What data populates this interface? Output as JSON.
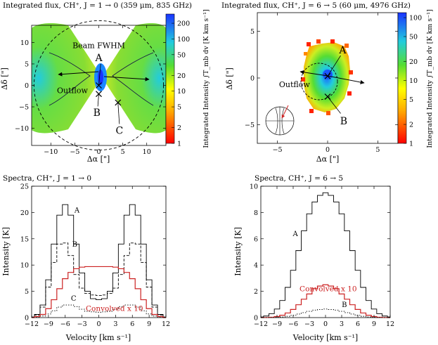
{
  "chart_data": [
    {
      "id": "map1",
      "type": "heatmap",
      "title": "Integrated flux, CH⁺, J = 1 → 0 (359 μm, 835 GHz)",
      "xlabel": "Δα [\"]",
      "ylabel": "Δδ [\"]",
      "xlim": [
        -14,
        14
      ],
      "ylim": [
        -14,
        14
      ],
      "xticks": [
        -10,
        -5,
        0,
        5,
        10
      ],
      "yticks": [
        -10,
        -5,
        0,
        5,
        10
      ],
      "colorbar": {
        "label": "Integrated Intensity ∫T_mb dv [K km s⁻¹]",
        "scale": "log",
        "range": [
          1,
          300
        ],
        "ticks": [
          1,
          2,
          5,
          10,
          20,
          50,
          100,
          200
        ]
      },
      "annotations": [
        {
          "text": "Beam FWHM",
          "x": 0,
          "y": 9.5
        },
        {
          "text": "A",
          "x": 0,
          "y": 6.5
        },
        {
          "text": "B",
          "x": -0.4,
          "y": -6.3
        },
        {
          "text": "C",
          "x": 4.3,
          "y": -10.5
        },
        {
          "text": "Outflow",
          "x": -5.5,
          "y": -1.0
        }
      ],
      "points": [
        {
          "label": "A",
          "x": 0,
          "y": 0
        },
        {
          "label": "B",
          "x": 0,
          "y": -2
        },
        {
          "label": "C",
          "x": 4,
          "y": -4
        }
      ],
      "beam_fwhm_radius": 13.5
    },
    {
      "id": "map2",
      "type": "heatmap",
      "title": "Integrated flux, CH⁺, J = 6 → 5 (60 μm, 4976 GHz)",
      "xlabel": "Δα [\"]",
      "ylabel": "Δδ [\"]",
      "xlim": [
        -7,
        7
      ],
      "ylim": [
        -7,
        7
      ],
      "xticks": [
        -5,
        0,
        5
      ],
      "yticks": [
        -5,
        0,
        5
      ],
      "colorbar": {
        "label": "Integrated Intensity ∫T_mb dv [K km s⁻¹]",
        "scale": "log",
        "range": [
          1,
          120
        ],
        "ticks": [
          1,
          2,
          5,
          10,
          20,
          50,
          100
        ]
      },
      "annotations": [
        {
          "text": "A",
          "x": 1.5,
          "y": 3.0
        },
        {
          "text": "B",
          "x": 1.6,
          "y": -4.6
        },
        {
          "text": "Outflow",
          "x": -3.3,
          "y": -0.6
        }
      ],
      "points": [
        {
          "label": "A",
          "x": 0,
          "y": 0.2
        },
        {
          "label": "B",
          "x": 0,
          "y": -2
        }
      ]
    },
    {
      "id": "spec1",
      "type": "line",
      "title": "Spectra, CH⁺, J = 1 → 0",
      "xlabel": "Velocity [km s⁻¹]",
      "ylabel": "Intensity [K]",
      "xlim": [
        -12,
        12
      ],
      "ylim": [
        0,
        25
      ],
      "xticks": [
        -12,
        -9,
        -6,
        -3,
        0,
        3,
        6,
        9,
        12
      ],
      "yticks": [
        0,
        5,
        10,
        15,
        20,
        25
      ],
      "x": [
        -12,
        -11,
        -10,
        -9,
        -8,
        -7,
        -6,
        -5,
        -4,
        -3,
        -2,
        -1,
        0,
        1,
        2,
        3,
        4,
        5,
        6,
        7,
        8,
        9,
        10,
        11,
        12
      ],
      "series": [
        {
          "name": "A",
          "style": "solid",
          "color": "#000000",
          "values": [
            0.1,
            0.6,
            2.4,
            7.2,
            14,
            19.5,
            21.5,
            19.5,
            14,
            8.5,
            5,
            3.6,
            3.4,
            3.6,
            5,
            8.5,
            14,
            19.5,
            21.5,
            19.5,
            14,
            7.2,
            2.4,
            0.6,
            0.1
          ]
        },
        {
          "name": "B",
          "style": "dashed",
          "color": "#000000",
          "values": [
            0.1,
            0.5,
            2,
            5.8,
            10.5,
            14,
            14.2,
            11.8,
            8.2,
            5.6,
            4.6,
            4.3,
            4.2,
            4.3,
            4.6,
            5.6,
            8.2,
            11.8,
            14.2,
            14,
            10.5,
            5.8,
            2,
            0.5,
            0.1
          ]
        },
        {
          "name": "C",
          "style": "dotted",
          "color": "#000000",
          "values": [
            0,
            0.1,
            0.3,
            0.7,
            1.3,
            2,
            2.4,
            2.4,
            2.1,
            1.6,
            1.2,
            1.1,
            1.0,
            1.1,
            1.2,
            1.6,
            2.1,
            2.4,
            2.4,
            2,
            1.3,
            0.7,
            0.3,
            0.1,
            0
          ]
        },
        {
          "name": "Convolved x 10",
          "style": "solid",
          "color": "#cc2222",
          "values": [
            0,
            0.2,
            0.6,
            1.7,
            3.4,
            5.5,
            7.4,
            8.6,
            9.3,
            9.6,
            9.7,
            9.7,
            9.7,
            9.7,
            9.7,
            9.6,
            9.3,
            8.6,
            7.4,
            5.5,
            3.4,
            1.7,
            0.6,
            0.2,
            0
          ]
        }
      ],
      "labels": [
        {
          "text": "A",
          "x": -3.9,
          "y": 20
        },
        {
          "text": "B",
          "x": -4.3,
          "y": 13.5
        },
        {
          "text": "C",
          "x": -4.5,
          "y": 3.2
        },
        {
          "text": "Convolved x 10",
          "x": 2.8,
          "y": 1.3
        }
      ]
    },
    {
      "id": "spec2",
      "type": "line",
      "title": "Spectra, CH⁺, J = 6 → 5",
      "xlabel": "Velocity [km s⁻¹]",
      "ylabel": "Intensity [K]",
      "xlim": [
        -12,
        12
      ],
      "ylim": [
        0,
        10
      ],
      "xticks": [
        -12,
        -9,
        -6,
        -3,
        0,
        3,
        6,
        9,
        12
      ],
      "yticks": [
        0,
        2,
        4,
        6,
        8,
        10
      ],
      "x": [
        -12,
        -11,
        -10,
        -9,
        -8,
        -7,
        -6,
        -5,
        -4,
        -3,
        -2,
        -1,
        0,
        1,
        2,
        3,
        4,
        5,
        6,
        7,
        8,
        9,
        10,
        11,
        12
      ],
      "series": [
        {
          "name": "A",
          "style": "solid",
          "color": "#000000",
          "values": [
            0.05,
            0.12,
            0.3,
            0.65,
            1.3,
            2.3,
            3.6,
            5.1,
            6.6,
            7.9,
            8.8,
            9.3,
            9.5,
            9.3,
            8.8,
            7.9,
            6.6,
            5.1,
            3.6,
            2.3,
            1.3,
            0.65,
            0.3,
            0.12,
            0.05
          ]
        },
        {
          "name": "Convolved x 10",
          "style": "solid",
          "color": "#cc2222",
          "values": [
            0,
            0.01,
            0.03,
            0.08,
            0.18,
            0.35,
            0.62,
            0.98,
            1.4,
            1.8,
            2.2,
            2.4,
            2.5,
            2.4,
            2.2,
            1.8,
            1.4,
            0.98,
            0.62,
            0.35,
            0.18,
            0.08,
            0.03,
            0.01,
            0
          ]
        },
        {
          "name": "B",
          "style": "dotted",
          "color": "#000000",
          "values": [
            0,
            0,
            0.01,
            0.02,
            0.05,
            0.1,
            0.17,
            0.27,
            0.38,
            0.48,
            0.57,
            0.62,
            0.65,
            0.62,
            0.57,
            0.48,
            0.38,
            0.27,
            0.17,
            0.1,
            0.05,
            0.02,
            0.01,
            0,
            0
          ]
        }
      ],
      "labels": [
        {
          "text": "A",
          "x": -5.6,
          "y": 6.2
        },
        {
          "text": "Convolved x 10",
          "x": 0.5,
          "y": 2.0
        },
        {
          "text": "B",
          "x": 3.5,
          "y": 0.8
        }
      ]
    }
  ]
}
